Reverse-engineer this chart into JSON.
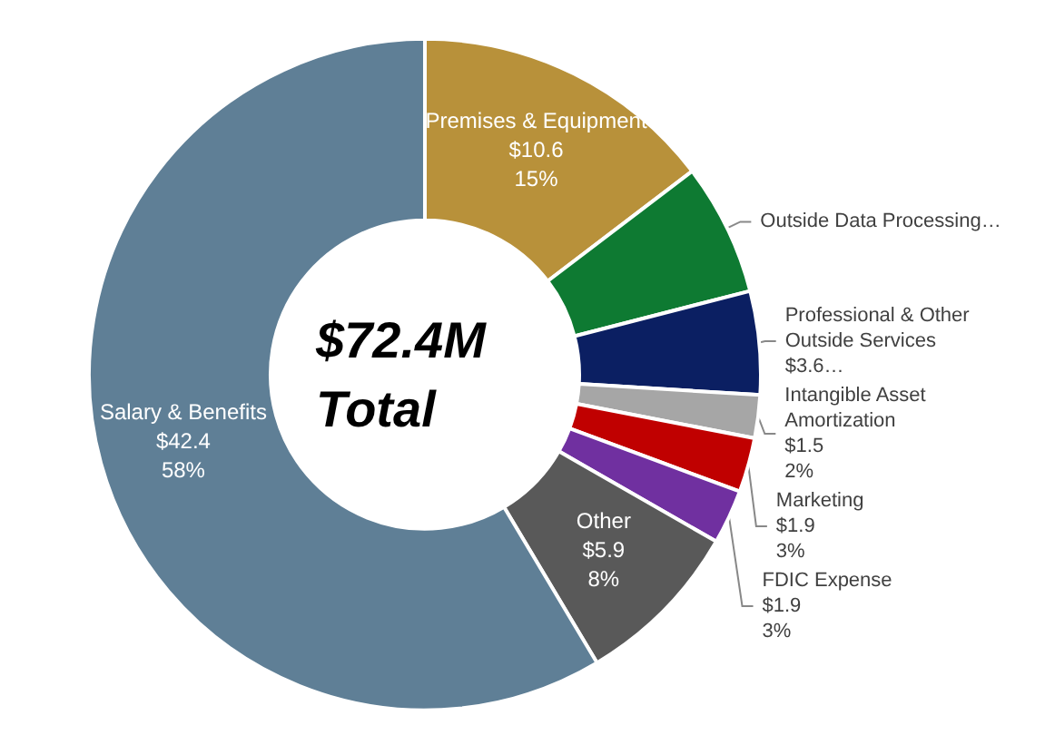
{
  "chart_data": {
    "type": "donut",
    "categories": [
      "Premises & Equipment",
      "Outside Data Processing…",
      "Professional & Other Outside Services",
      "Intangible Asset Amortization",
      "Marketing",
      "FDIC Expense",
      "Other",
      "Salary & Benefits"
    ],
    "values": [
      10.6,
      4.6,
      3.6,
      1.5,
      1.9,
      1.9,
      5.9,
      42.4
    ],
    "value_labels": [
      "$10.6\n15%",
      null,
      "$3.6…",
      "$1.5\n2%",
      "$1.9\n3%",
      "$1.9\n3%",
      "$5.9\n8%",
      "$42.4\n58%"
    ],
    "colors": [
      "#b8913a",
      "#0e7a32",
      "#0b1f62",
      "#a6a6a6",
      "#c00000",
      "#7030a0",
      "#595959",
      "#5f7f96"
    ],
    "annotations": [
      "$72.4M\nTotal"
    ],
    "legend": false
  }
}
